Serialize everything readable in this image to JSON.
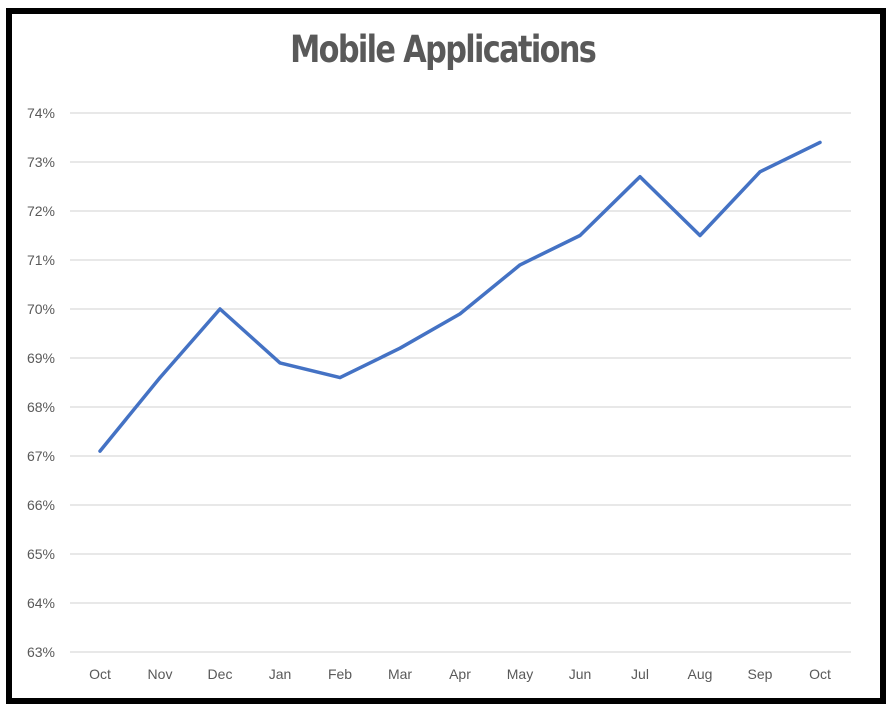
{
  "chart_data": {
    "type": "line",
    "title": "Mobile Applications",
    "xlabel": "",
    "ylabel": "",
    "categories": [
      "Oct",
      "Nov",
      "Dec",
      "Jan",
      "Feb",
      "Mar",
      "Apr",
      "May",
      "Jun",
      "Jul",
      "Aug",
      "Sep",
      "Oct"
    ],
    "series": [
      {
        "values": [
          67.1,
          68.6,
          70.0,
          68.9,
          68.6,
          69.2,
          69.9,
          70.9,
          71.5,
          72.7,
          71.5,
          72.8,
          73.4
        ],
        "color": "#4472C4"
      }
    ],
    "ylim": [
      63,
      74
    ],
    "yticks": [
      "63%",
      "64%",
      "65%",
      "66%",
      "67%",
      "68%",
      "69%",
      "70%",
      "71%",
      "72%",
      "73%",
      "74%"
    ],
    "grid": true,
    "legend": "none"
  }
}
